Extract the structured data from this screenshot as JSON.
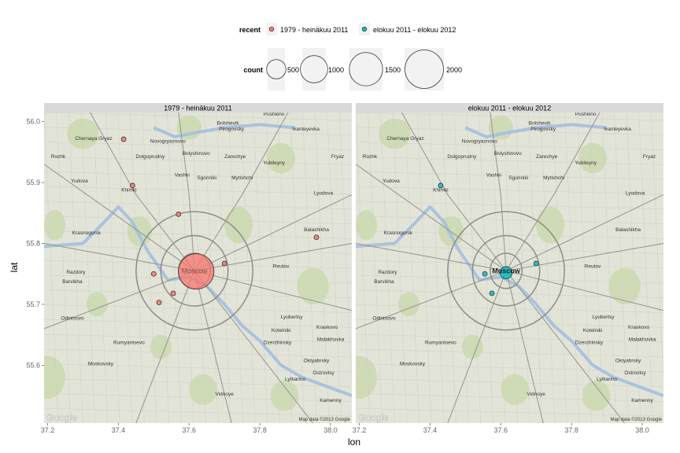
{
  "chart_data": {
    "type": "scatter",
    "xlabel": "lon",
    "ylabel": "lat",
    "xlim": [
      37.19,
      38.06
    ],
    "ylim": [
      55.505,
      56.015
    ],
    "x_ticks": [
      37.2,
      37.4,
      37.6,
      37.8,
      38.0
    ],
    "x_tick_labels": [
      "37.2",
      "37.4",
      "37.6",
      "37.8",
      "38.0"
    ],
    "y_ticks": [
      55.6,
      55.7,
      55.8,
      55.9,
      56.0
    ],
    "y_tick_labels": [
      "55.6",
      "55.7",
      "55.8",
      "55.9",
      "56.0"
    ],
    "grid": false,
    "legend": {
      "placement": "top",
      "color_title": "recent",
      "color_entries": [
        {
          "label": "1979 - heinäkuu 2011",
          "color": "#F8766D"
        },
        {
          "label": "elokuu 2011 - elokuu 2012",
          "color": "#00BFC4"
        }
      ],
      "size_title": "count",
      "size_entries": [
        {
          "label": "500",
          "value": 500
        },
        {
          "label": "1000",
          "value": 1000
        },
        {
          "label": "1500",
          "value": 1500
        },
        {
          "label": "2000",
          "value": 2000
        }
      ]
    },
    "panels": [
      {
        "strip": "1979 - heinäkuu 2011",
        "color": "#F8766D",
        "points": [
          {
            "lon": 37.62,
            "lat": 55.754,
            "count": 1700
          },
          {
            "lon": 37.415,
            "lat": 55.971,
            "count": 30
          },
          {
            "lon": 37.44,
            "lat": 55.895,
            "count": 30
          },
          {
            "lon": 37.57,
            "lat": 55.848,
            "count": 30
          },
          {
            "lon": 37.96,
            "lat": 55.81,
            "count": 30
          },
          {
            "lon": 37.7,
            "lat": 55.767,
            "count": 30
          },
          {
            "lon": 37.5,
            "lat": 55.75,
            "count": 30
          },
          {
            "lon": 37.555,
            "lat": 55.718,
            "count": 30
          },
          {
            "lon": 37.515,
            "lat": 55.703,
            "count": 30
          }
        ]
      },
      {
        "strip": "elokuu 2011 - elokuu 2012",
        "color": "#00BFC4",
        "points": [
          {
            "lon": 37.615,
            "lat": 55.752,
            "count": 200
          },
          {
            "lon": 37.43,
            "lat": 55.895,
            "count": 30
          },
          {
            "lon": 37.7,
            "lat": 55.767,
            "count": 30
          },
          {
            "lon": 37.555,
            "lat": 55.75,
            "count": 30
          },
          {
            "lon": 37.575,
            "lat": 55.718,
            "count": 30
          }
        ]
      }
    ]
  },
  "map": {
    "attribution": "Map data ©2013 Google",
    "logo_text": "Google",
    "colors": {
      "land": "#e3e4d8",
      "park": "#c9d8ab",
      "water": "#a9c2de",
      "road": "#9a9a96",
      "ring": "#8d8d89",
      "strip": "#d9d9d9",
      "legend_key_bg": "#f2f2f2"
    },
    "places": [
      {
        "name": "Chernaya Gryaz",
        "lon": 37.33,
        "lat": 55.97
      },
      {
        "name": "Novogryaznovo",
        "lon": 37.54,
        "lat": 55.965
      },
      {
        "name": "Bolshevik",
        "lon": 37.71,
        "lat": 55.995
      },
      {
        "name": "Pirogovsky",
        "lon": 37.72,
        "lat": 55.985
      },
      {
        "name": "Pushkino",
        "lon": 37.84,
        "lat": 56.01
      },
      {
        "name": "Ivanteyevka",
        "lon": 37.93,
        "lat": 55.985
      },
      {
        "name": "Rozhk",
        "lon": 37.23,
        "lat": 55.94
      },
      {
        "name": "Dolgoprudny",
        "lon": 37.49,
        "lat": 55.94
      },
      {
        "name": "Bolyshinovo",
        "lon": 37.62,
        "lat": 55.945
      },
      {
        "name": "Zarechye",
        "lon": 37.73,
        "lat": 55.94
      },
      {
        "name": "Yubileyny",
        "lon": 37.84,
        "lat": 55.93
      },
      {
        "name": "Fryaz",
        "lon": 38.02,
        "lat": 55.94
      },
      {
        "name": "Yudova",
        "lon": 37.29,
        "lat": 55.9
      },
      {
        "name": "Khimki",
        "lon": 37.43,
        "lat": 55.885
      },
      {
        "name": "Vashki",
        "lon": 37.58,
        "lat": 55.91
      },
      {
        "name": "Sgonniki",
        "lon": 37.65,
        "lat": 55.905
      },
      {
        "name": "Mytishchi",
        "lon": 37.75,
        "lat": 55.905
      },
      {
        "name": "Lyodova",
        "lon": 37.98,
        "lat": 55.88
      },
      {
        "name": "Krasnogorsk",
        "lon": 37.31,
        "lat": 55.815
      },
      {
        "name": "Balashikha",
        "lon": 37.96,
        "lat": 55.82
      },
      {
        "name": "Reutov",
        "lon": 37.86,
        "lat": 55.76
      },
      {
        "name": "Razdory",
        "lon": 37.28,
        "lat": 55.75
      },
      {
        "name": "Barvikha",
        "lon": 37.27,
        "lat": 55.735
      },
      {
        "name": "Moscow",
        "lon": 37.615,
        "lat": 55.755
      },
      {
        "name": "Odintsovo",
        "lon": 37.27,
        "lat": 55.675
      },
      {
        "name": "Lyubertsy",
        "lon": 37.89,
        "lat": 55.677
      },
      {
        "name": "Kraskovo",
        "lon": 37.99,
        "lat": 55.66
      },
      {
        "name": "Rumyantsevo",
        "lon": 37.43,
        "lat": 55.635
      },
      {
        "name": "Kotelniki",
        "lon": 37.86,
        "lat": 55.655
      },
      {
        "name": "Dzerzhinsky",
        "lon": 37.85,
        "lat": 55.635
      },
      {
        "name": "Malakhovka",
        "lon": 38.0,
        "lat": 55.64
      },
      {
        "name": "Moskovsky",
        "lon": 37.35,
        "lat": 55.6
      },
      {
        "name": "Oktyabrsky",
        "lon": 37.96,
        "lat": 55.605
      },
      {
        "name": "Ostrovtsy",
        "lon": 37.98,
        "lat": 55.585
      },
      {
        "name": "Lytkarino",
        "lon": 37.9,
        "lat": 55.575
      },
      {
        "name": "Vidnoye",
        "lon": 37.7,
        "lat": 55.55
      },
      {
        "name": "Kamenny",
        "lon": 38.0,
        "lat": 55.54
      }
    ]
  }
}
